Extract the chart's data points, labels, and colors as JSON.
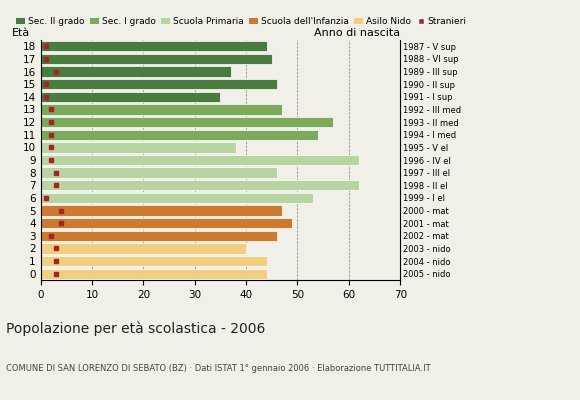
{
  "ages": [
    18,
    17,
    16,
    15,
    14,
    13,
    12,
    11,
    10,
    9,
    8,
    7,
    6,
    5,
    4,
    3,
    2,
    1,
    0
  ],
  "values": [
    44,
    45,
    37,
    46,
    35,
    47,
    57,
    54,
    38,
    62,
    46,
    62,
    53,
    47,
    49,
    46,
    40,
    44,
    44
  ],
  "stranieri": [
    1,
    1,
    3,
    1,
    1,
    2,
    2,
    2,
    2,
    2,
    3,
    3,
    1,
    4,
    4,
    2,
    3,
    3,
    3
  ],
  "right_labels": [
    "1987 - V sup",
    "1988 - VI sup",
    "1989 - III sup",
    "1990 - II sup",
    "1991 - I sup",
    "1992 - III med",
    "1993 - II med",
    "1994 - I med",
    "1995 - V el",
    "1996 - IV el",
    "1997 - III el",
    "1998 - II el",
    "1999 - I el",
    "2000 - mat",
    "2001 - mat",
    "2002 - mat",
    "2003 - nido",
    "2004 - nido",
    "2005 - nido"
  ],
  "bar_colors": [
    "#4a7c3f",
    "#4a7c3f",
    "#4a7c3f",
    "#4a7c3f",
    "#4a7c3f",
    "#7aaa5a",
    "#7aaa5a",
    "#7aaa5a",
    "#b8d4a0",
    "#b8d4a0",
    "#b8d4a0",
    "#b8d4a0",
    "#b8d4a0",
    "#cc7a30",
    "#cc7a30",
    "#cc7a30",
    "#f0d080",
    "#f0d080",
    "#f0d080"
  ],
  "legend_labels": [
    "Sec. II grado",
    "Sec. I grado",
    "Scuola Primaria",
    "Scuola dell'Infanzia",
    "Asilo Nido",
    "Stranieri"
  ],
  "legend_colors": [
    "#4a7c3f",
    "#7aaa5a",
    "#b8d4a0",
    "#cc7a30",
    "#f0d080",
    "#aa2222"
  ],
  "stranieri_color": "#aa2222",
  "title": "Popolazione per età scolastica - 2006",
  "subtitle": "COMUNE DI SAN LORENZO DI SEBATO (BZ) · Dati ISTAT 1° gennaio 2006 · Elaborazione TUTTITALIA.IT",
  "ylabel": "Età",
  "xlabel_right": "Anno di nascita",
  "xlim": [
    0,
    70
  ],
  "xticks": [
    0,
    10,
    20,
    30,
    40,
    50,
    60,
    70
  ],
  "bar_height": 0.82,
  "bg_color": "#f0f0e8"
}
